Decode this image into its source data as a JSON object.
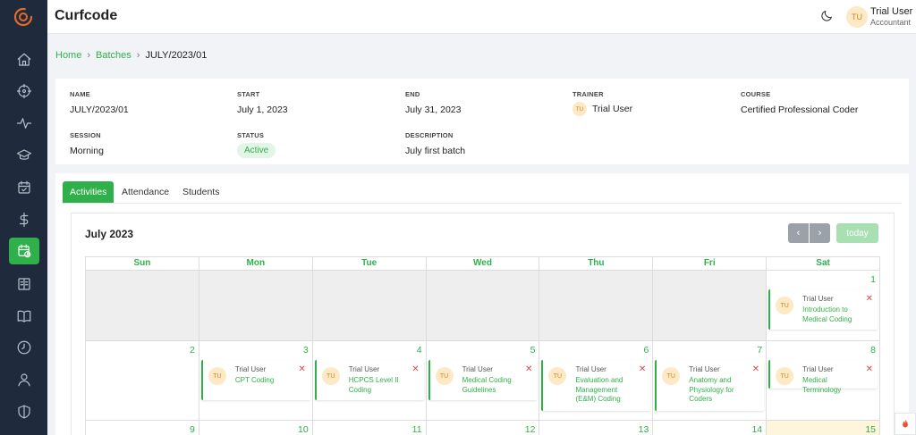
{
  "app": {
    "title": "Curfcode"
  },
  "user": {
    "initials": "TU",
    "name": "Trial User",
    "role": "Accountant"
  },
  "breadcrumb": {
    "home": "Home",
    "batches": "Batches",
    "current": "JULY/2023/01",
    "sep": "›"
  },
  "batch": {
    "name_label": "NAME",
    "name": "JULY/2023/01",
    "start_label": "START",
    "start": "July 1, 2023",
    "end_label": "END",
    "end": "July 31, 2023",
    "trainer_label": "TRAINER",
    "trainer": "Trial User",
    "trainer_initials": "TU",
    "course_label": "COURSE",
    "course": "Certified Professional Coder",
    "session_label": "SESSION",
    "session": "Morning",
    "status_label": "STATUS",
    "status": "Active",
    "description_label": "DESCRIPTION",
    "description": "July first batch"
  },
  "tabs": [
    {
      "label": "Activities",
      "active": true
    },
    {
      "label": "Attendance"
    },
    {
      "label": "Students"
    }
  ],
  "calendar": {
    "title": "July 2023",
    "prev": "‹",
    "next": "›",
    "today_label": "today",
    "weekdays": [
      "Sun",
      "Mon",
      "Tue",
      "Wed",
      "Thu",
      "Fri",
      "Sat"
    ],
    "week1": {
      "sat": "1"
    },
    "week2": [
      "2",
      "3",
      "4",
      "5",
      "6",
      "7",
      "8"
    ],
    "week3": [
      "9",
      "10",
      "11",
      "12",
      "13",
      "14",
      "15"
    ],
    "events": {
      "d1": {
        "user": "Trial User",
        "initials": "TU",
        "title": "Introduction to Medical Coding",
        "remove": "✕"
      },
      "d3": {
        "user": "Trial User",
        "initials": "TU",
        "title": "CPT Coding",
        "remove": "✕"
      },
      "d4": {
        "user": "Trial User",
        "initials": "TU",
        "title": "HCPCS Level II Coding",
        "remove": "✕"
      },
      "d5": {
        "user": "Trial User",
        "initials": "TU",
        "title": "Medical Coding Guidelines",
        "remove": "✕"
      },
      "d6": {
        "user": "Trial User",
        "initials": "TU",
        "title": "Evaluation and Management (E&M) Coding",
        "remove": "✕"
      },
      "d7": {
        "user": "Trial User",
        "initials": "TU",
        "title": "Anatomy and Physiology for Coders",
        "remove": "✕"
      },
      "d8": {
        "user": "Trial User",
        "initials": "TU",
        "title": "Medical Terminology",
        "remove": "✕"
      }
    }
  },
  "colors": {
    "accent": "#2fb04a",
    "sidebar": "#1f2a3c",
    "today_cell": "#fdf6dd"
  }
}
